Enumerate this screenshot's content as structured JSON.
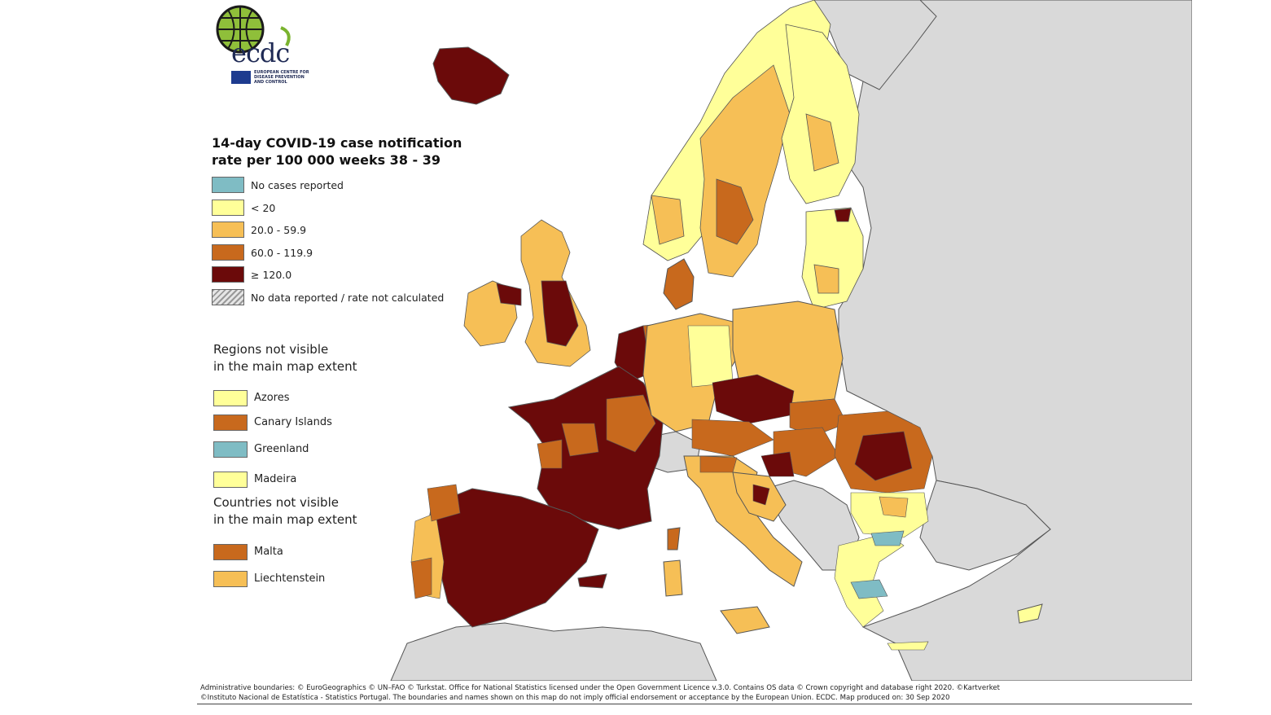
{
  "logo": {
    "text": "ecdc",
    "subtitle": "EUROPEAN CENTRE FOR DISEASE PREVENTION AND CONTROL"
  },
  "legend": {
    "title_line1": "14-day COVID-19 case notification",
    "title_line2": "rate per 100 000 weeks 38 - 39",
    "items": [
      {
        "label": "No cases reported",
        "color": "#7fbcc4"
      },
      {
        "label": "< 20",
        "color": "#ffff99"
      },
      {
        "label": "20.0 - 59.9",
        "color": "#f6bf56"
      },
      {
        "label": "60.0 - 119.9",
        "color": "#c8691d"
      },
      {
        "label": "≥ 120.0",
        "color": "#6b0a0a"
      },
      {
        "label": "No data reported / rate not calculated",
        "color": "hatch"
      }
    ]
  },
  "regions_not_visible": {
    "title_line1": "Regions not visible",
    "title_line2": "in the main map extent",
    "items": [
      {
        "label": "Azores",
        "color": "#ffff99"
      },
      {
        "label": "Canary Islands",
        "color": "#c8691d"
      },
      {
        "label": "Greenland",
        "color": "#7fbcc4"
      },
      {
        "label": "Madeira",
        "color": "#ffff99"
      }
    ]
  },
  "countries_not_visible": {
    "title_line1": "Countries not visible",
    "title_line2": "in the main map extent",
    "items": [
      {
        "label": "Malta",
        "color": "#c8691d"
      },
      {
        "label": "Liechtenstein",
        "color": "#f6bf56"
      }
    ]
  },
  "credits": {
    "line1": "Administrative boundaries: © EuroGeographics © UN–FAO © Turkstat. Office for National Statistics licensed under the Open Government Licence v.3.0. Contains OS data © Crown copyright and database right 2020. ©Kartverket",
    "line2": "©Instituto Nacional de Estatística - Statistics Portugal. The boundaries and names shown on this map do not imply official endorsement or acceptance by the European Union. ECDC. Map produced on: 30 Sep 2020"
  },
  "map_colors": {
    "not_included": "#d9d9d9",
    "sea": "#ffffff",
    "border": "#555555"
  }
}
